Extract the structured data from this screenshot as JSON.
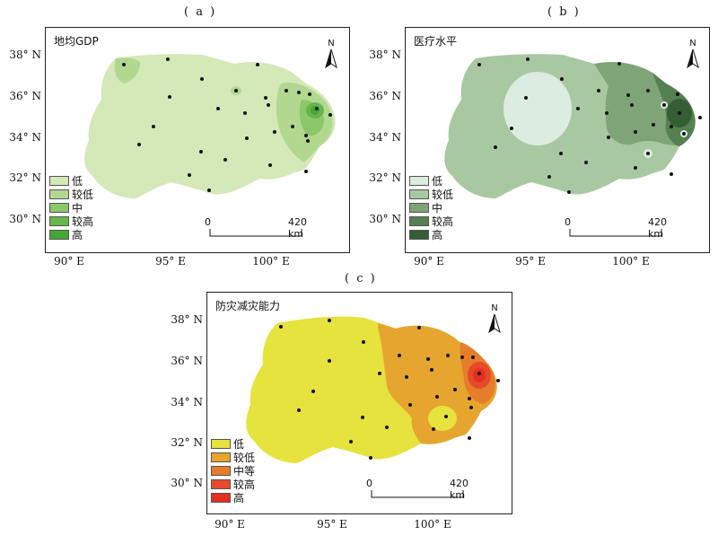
{
  "panels": {
    "a": {
      "label": "( a )",
      "title": "地均GDP",
      "legend": [
        {
          "label": "低",
          "color": "#d4e8b8"
        },
        {
          "label": "较低",
          "color": "#b2d890"
        },
        {
          "label": "中",
          "color": "#8cc76a"
        },
        {
          "label": "较高",
          "color": "#66b64a"
        },
        {
          "label": "高",
          "color": "#44a638"
        }
      ]
    },
    "b": {
      "label": "( b )",
      "title": "医疗水平",
      "legend": [
        {
          "label": "低",
          "color": "#dcece0"
        },
        {
          "label": "较低",
          "color": "#a8c8a2"
        },
        {
          "label": "中",
          "color": "#7ea477"
        },
        {
          "label": "较高",
          "color": "#567f52"
        },
        {
          "label": "高",
          "color": "#355e34"
        }
      ]
    },
    "c": {
      "label": "( c )",
      "title": "防灾减灾能力",
      "legend": [
        {
          "label": "低",
          "color": "#e6e23e"
        },
        {
          "label": "较低",
          "color": "#e6a52e"
        },
        {
          "label": "中等",
          "color": "#e67d2a"
        },
        {
          "label": "较高",
          "color": "#e64a2a"
        },
        {
          "label": "高",
          "color": "#e53020"
        }
      ]
    }
  },
  "axes": {
    "y_ticks": [
      "38° N",
      "36° N",
      "34° N",
      "32° N",
      "30° N"
    ],
    "x_ticks": [
      "90° E",
      "95° E",
      "100° E"
    ]
  },
  "north_label": "N",
  "scale": {
    "start": "0",
    "end": "420 km"
  }
}
